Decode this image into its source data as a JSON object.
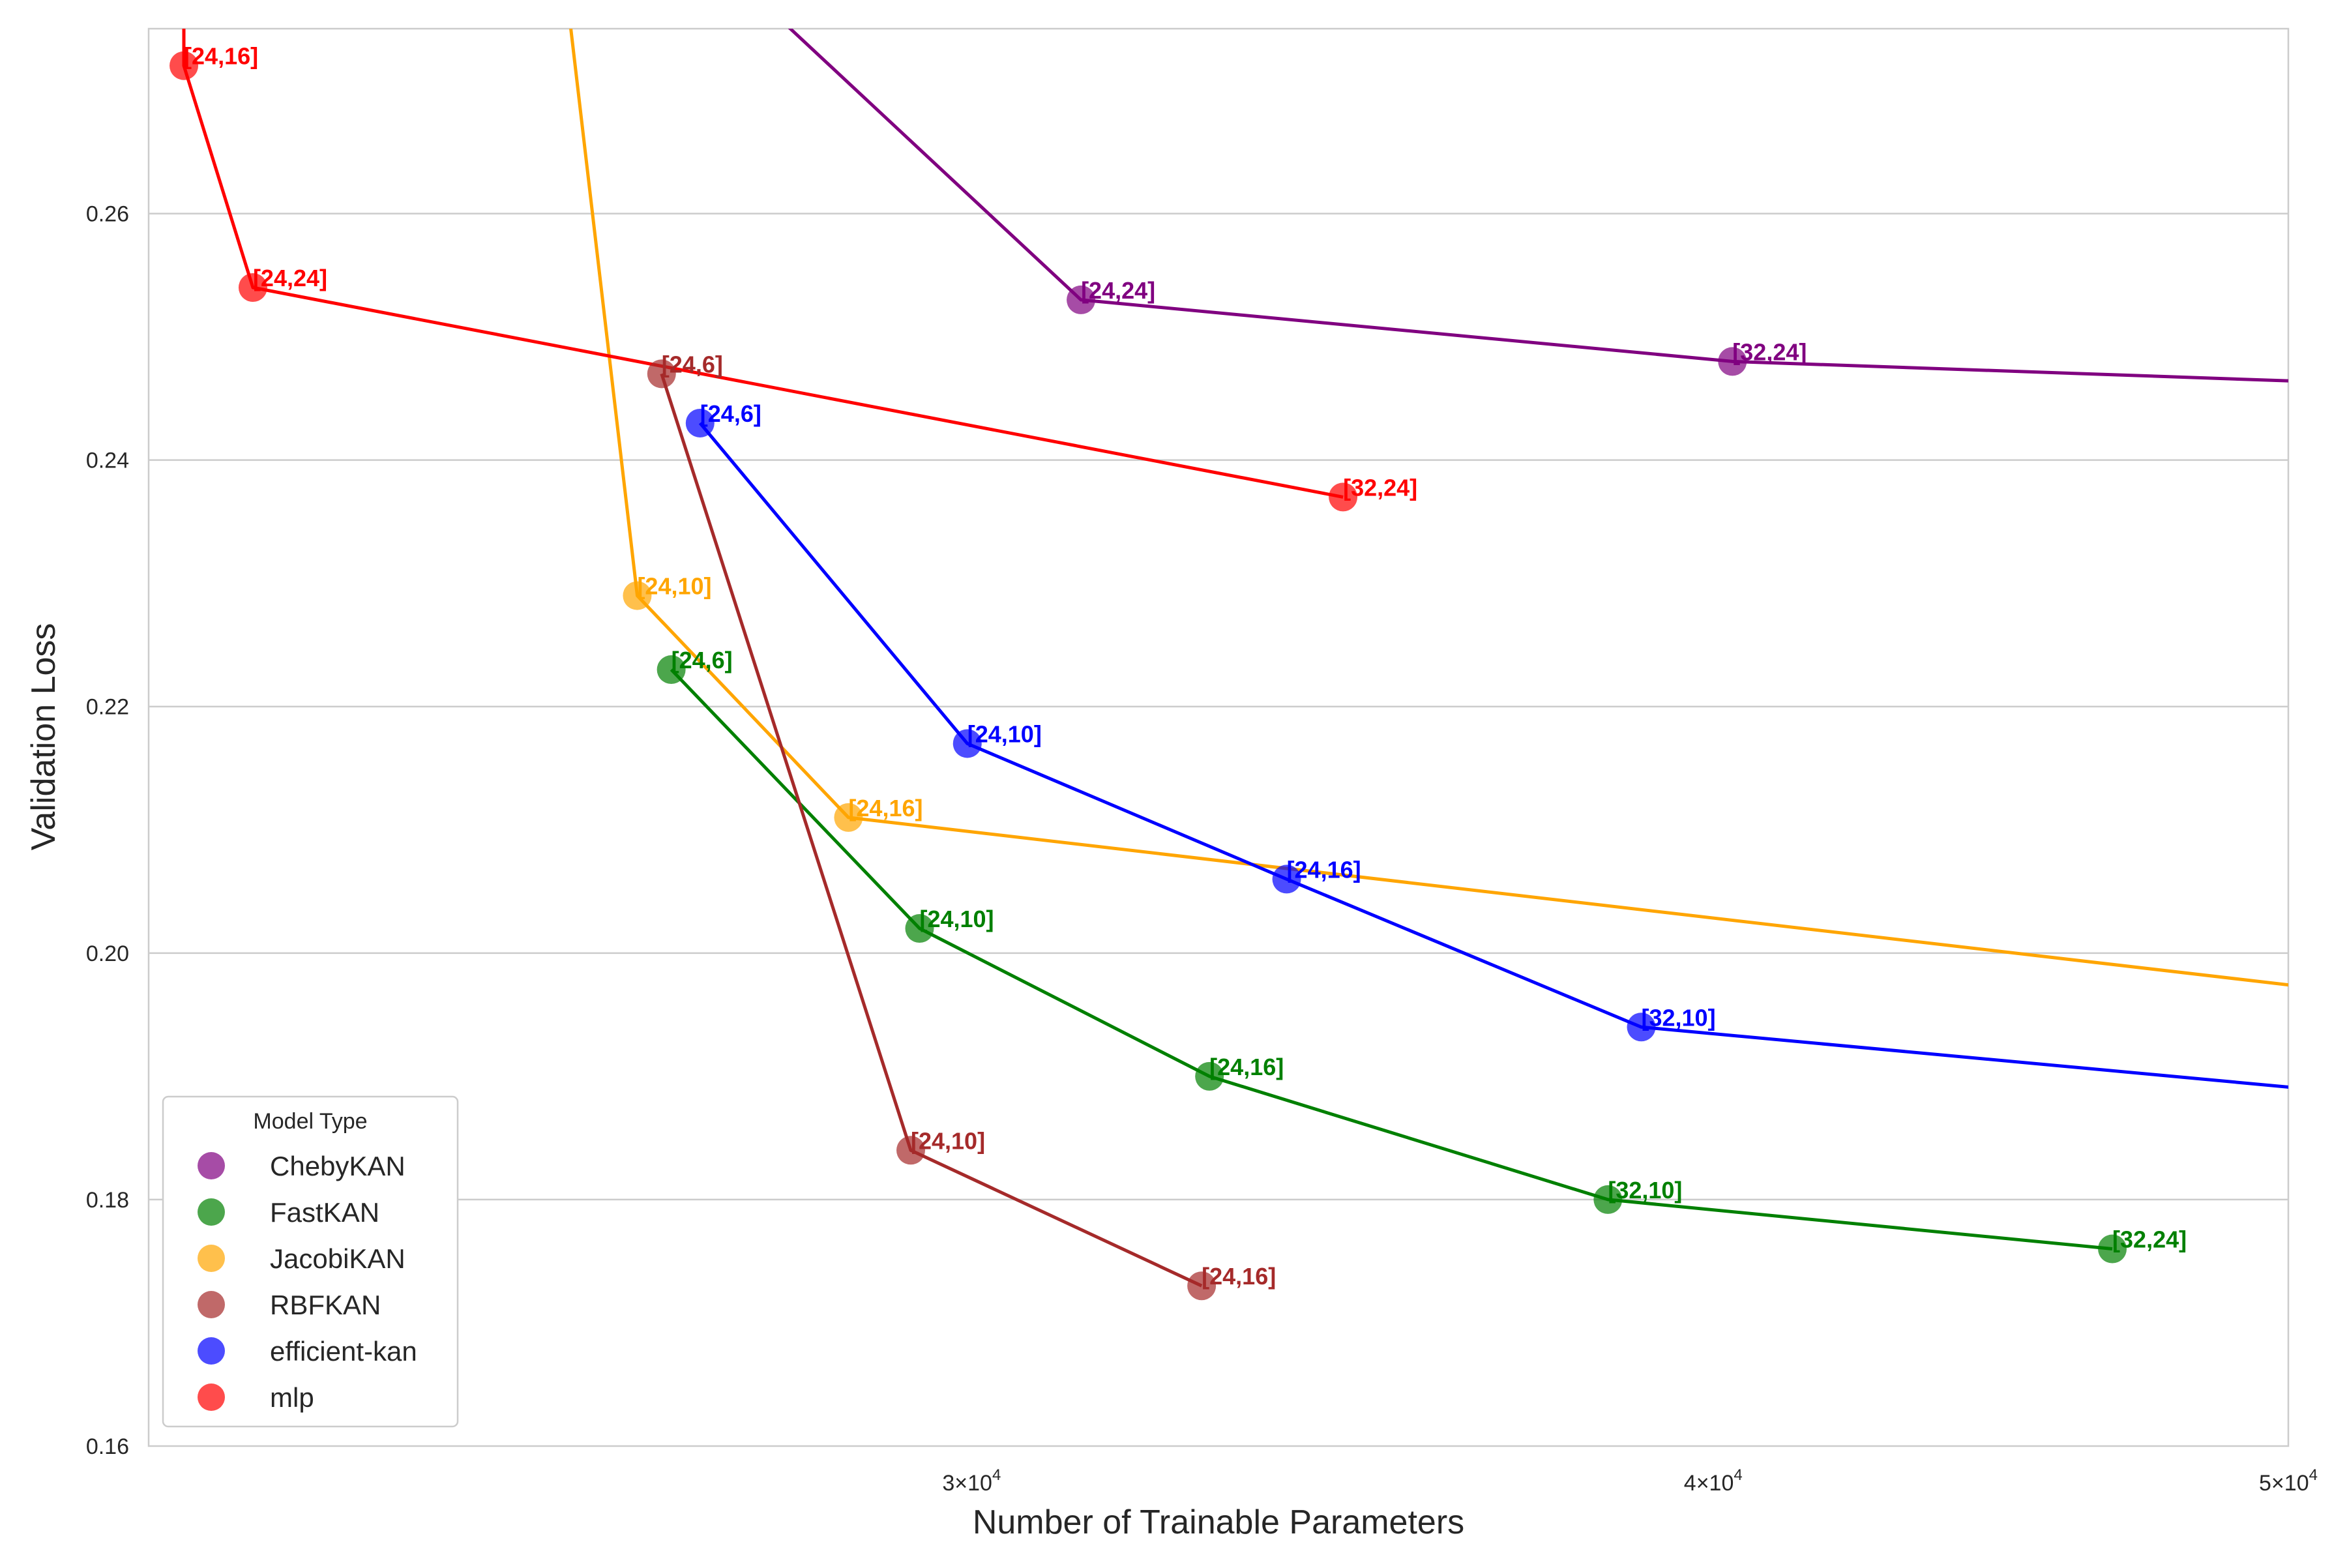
{
  "chart_data": {
    "type": "line",
    "xlabel": "Number of Trainable Parameters",
    "ylabel": "Validation Loss",
    "xscale": "log",
    "xlim": [
      21800,
      50000
    ],
    "ylim": [
      0.16,
      0.275
    ],
    "xticks": [
      {
        "value": 30000,
        "base": "3×10",
        "exp": "4"
      },
      {
        "value": 40000,
        "base": "4×10",
        "exp": "4"
      },
      {
        "value": 50000,
        "base": "5×10",
        "exp": "4"
      }
    ],
    "yticks": [
      "0.16",
      "0.18",
      "0.20",
      "0.22",
      "0.24",
      "0.26"
    ],
    "grid": "horizontal",
    "legend": {
      "title": "Model Type",
      "position": "lower-left"
    },
    "series": [
      {
        "name": "ChebyKAN",
        "color": "#800080",
        "points": [
          {
            "x": 24600,
            "y": 0.3,
            "label": ""
          },
          {
            "x": 31300,
            "y": 0.253,
            "label": "[24,24]"
          },
          {
            "x": 40300,
            "y": 0.248,
            "label": "[32,24]"
          },
          {
            "x": 53000,
            "y": 0.246,
            "label": ""
          }
        ]
      },
      {
        "name": "FastKAN",
        "color": "#008000",
        "points": [
          {
            "x": 26700,
            "y": 0.223,
            "label": "[24,6]"
          },
          {
            "x": 29400,
            "y": 0.202,
            "label": "[24,10]"
          },
          {
            "x": 32900,
            "y": 0.19,
            "label": "[24,16]"
          },
          {
            "x": 38400,
            "y": 0.18,
            "label": "[32,10]"
          },
          {
            "x": 46700,
            "y": 0.176,
            "label": "[32,24]"
          }
        ]
      },
      {
        "name": "JacobiKAN",
        "color": "#FFA500",
        "points": [
          {
            "x": 24900,
            "y": 0.33,
            "label": ""
          },
          {
            "x": 26350,
            "y": 0.229,
            "label": "[24,10]"
          },
          {
            "x": 28600,
            "y": 0.211,
            "label": "[24,16]"
          },
          {
            "x": 53000,
            "y": 0.196,
            "label": ""
          }
        ]
      },
      {
        "name": "RBFKAN",
        "color": "#A52A2A",
        "points": [
          {
            "x": 26600,
            "y": 0.247,
            "label": "[24,6]"
          },
          {
            "x": 29300,
            "y": 0.184,
            "label": "[24,10]"
          },
          {
            "x": 32800,
            "y": 0.173,
            "label": "[24,16]"
          }
        ]
      },
      {
        "name": "efficient-kan",
        "color": "#0000FF",
        "points": [
          {
            "x": 27000,
            "y": 0.243,
            "label": "[24,6]"
          },
          {
            "x": 29950,
            "y": 0.217,
            "label": "[24,10]"
          },
          {
            "x": 33900,
            "y": 0.206,
            "label": "[24,16]"
          },
          {
            "x": 38900,
            "y": 0.194,
            "label": "[32,10]"
          },
          {
            "x": 53000,
            "y": 0.188,
            "label": ""
          }
        ]
      },
      {
        "name": "mlp",
        "color": "#FF0000",
        "points": [
          {
            "x": 22100,
            "y": 0.3,
            "label": ""
          },
          {
            "x": 22100,
            "y": 0.272,
            "label": "[24,16]"
          },
          {
            "x": 22700,
            "y": 0.254,
            "label": "[24,24]"
          },
          {
            "x": 34650,
            "y": 0.237,
            "label": "[32,24]"
          }
        ]
      }
    ]
  }
}
